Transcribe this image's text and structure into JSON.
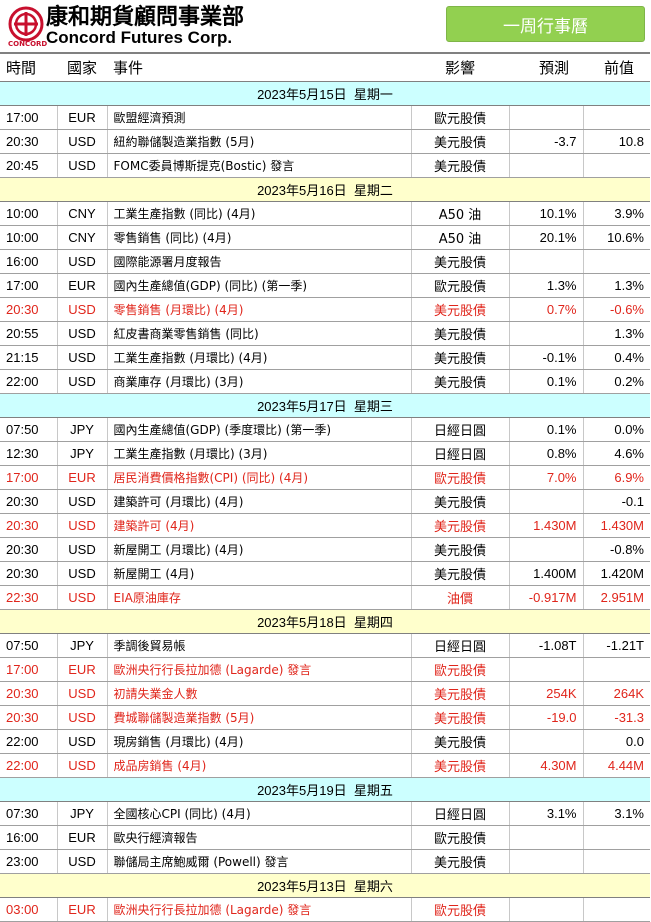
{
  "brand": {
    "chinese_name": "康和期貨顧問事業部",
    "english_name": "Concord Futures Corp.",
    "logo_small": "CONCORD"
  },
  "title": "一周行事曆",
  "colors": {
    "red": "#e0251b",
    "date_row_a": "#ccffff",
    "date_row_b": "#ffffcc",
    "badge": "#92d050"
  },
  "columns": [
    "時間",
    "國家",
    "事件",
    "影響",
    "預測",
    "前值"
  ],
  "days": [
    {
      "date": "2023年5月15日",
      "weekday": "星期一",
      "rows": [
        {
          "time": "17:00",
          "country": "EUR",
          "event": "歐盟經濟預測",
          "impact": "歐元股債",
          "forecast": "",
          "previous": "",
          "highlight": false
        },
        {
          "time": "20:30",
          "country": "USD",
          "event": "紐約聯儲製造業指數 (5月)",
          "impact": "美元股債",
          "forecast": "-3.7",
          "previous": "10.8",
          "highlight": false
        },
        {
          "time": "20:45",
          "country": "USD",
          "event": "FOMC委員博斯提克(Bostic) 發言",
          "impact": "美元股債",
          "forecast": "",
          "previous": "",
          "highlight": false
        }
      ]
    },
    {
      "date": "2023年5月16日",
      "weekday": "星期二",
      "rows": [
        {
          "time": "10:00",
          "country": "CNY",
          "event": "工業生產指數 (同比) (4月)",
          "impact": "A50 油",
          "forecast": "10.1%",
          "previous": "3.9%",
          "highlight": false
        },
        {
          "time": "10:00",
          "country": "CNY",
          "event": "零售銷售 (同比) (4月)",
          "impact": "A50 油",
          "forecast": "20.1%",
          "previous": "10.6%",
          "highlight": false
        },
        {
          "time": "16:00",
          "country": "USD",
          "event": "國際能源署月度報告",
          "impact": "美元股債",
          "forecast": "",
          "previous": "",
          "highlight": false
        },
        {
          "time": "17:00",
          "country": "EUR",
          "event": "國內生產總值(GDP) (同比) (第一季)",
          "impact": "歐元股債",
          "forecast": "1.3%",
          "previous": "1.3%",
          "highlight": false
        },
        {
          "time": "20:30",
          "country": "USD",
          "event": "零售銷售 (月環比) (4月)",
          "impact": "美元股債",
          "forecast": "0.7%",
          "previous": "-0.6%",
          "highlight": true
        },
        {
          "time": "20:55",
          "country": "USD",
          "event": "紅皮書商業零售銷售 (同比)",
          "impact": "美元股債",
          "forecast": "",
          "previous": "1.3%",
          "highlight": false
        },
        {
          "time": "21:15",
          "country": "USD",
          "event": "工業生產指數 (月環比) (4月)",
          "impact": "美元股債",
          "forecast": "-0.1%",
          "previous": "0.4%",
          "highlight": false
        },
        {
          "time": "22:00",
          "country": "USD",
          "event": "商業庫存 (月環比) (3月)",
          "impact": "美元股債",
          "forecast": "0.1%",
          "previous": "0.2%",
          "highlight": false
        }
      ]
    },
    {
      "date": "2023年5月17日",
      "weekday": "星期三",
      "rows": [
        {
          "time": "07:50",
          "country": "JPY",
          "event": "國內生產總值(GDP) (季度環比) (第一季)",
          "impact": "日經日圓",
          "forecast": "0.1%",
          "previous": "0.0%",
          "highlight": false
        },
        {
          "time": "12:30",
          "country": "JPY",
          "event": "工業生產指數 (月環比) (3月)",
          "impact": "日經日圓",
          "forecast": "0.8%",
          "previous": "4.6%",
          "highlight": false
        },
        {
          "time": "17:00",
          "country": "EUR",
          "event": "居民消費價格指數(CPI) (同比) (4月)",
          "impact": "歐元股債",
          "forecast": "7.0%",
          "previous": "6.9%",
          "highlight": true
        },
        {
          "time": "20:30",
          "country": "USD",
          "event": "建築許可 (月環比) (4月)",
          "impact": "美元股債",
          "forecast": "",
          "previous": "-0.1",
          "highlight": false
        },
        {
          "time": "20:30",
          "country": "USD",
          "event": "建築許可 (4月)",
          "impact": "美元股債",
          "forecast": "1.430M",
          "previous": "1.430M",
          "highlight": true
        },
        {
          "time": "20:30",
          "country": "USD",
          "event": "新屋開工 (月環比) (4月)",
          "impact": "美元股債",
          "forecast": "",
          "previous": "-0.8%",
          "highlight": false
        },
        {
          "time": "20:30",
          "country": "USD",
          "event": "新屋開工 (4月)",
          "impact": "美元股債",
          "forecast": "1.400M",
          "previous": "1.420M",
          "highlight": false
        },
        {
          "time": "22:30",
          "country": "USD",
          "event": "EIA原油庫存",
          "impact": "油價",
          "forecast": "-0.917M",
          "previous": "2.951M",
          "highlight": true
        }
      ]
    },
    {
      "date": "2023年5月18日",
      "weekday": "星期四",
      "rows": [
        {
          "time": "07:50",
          "country": "JPY",
          "event": "季調後貿易帳",
          "impact": "日經日圓",
          "forecast": "-1.08T",
          "previous": "-1.21T",
          "highlight": false
        },
        {
          "time": "17:00",
          "country": "EUR",
          "event": "歐洲央行行長拉加德 (Lagarde) 發言",
          "impact": "歐元股債",
          "forecast": "",
          "previous": "",
          "highlight": true
        },
        {
          "time": "20:30",
          "country": "USD",
          "event": "初請失業金人數",
          "impact": "美元股債",
          "forecast": "254K",
          "previous": "264K",
          "highlight": true
        },
        {
          "time": "20:30",
          "country": "USD",
          "event": "費城聯儲製造業指數 (5月)",
          "impact": "美元股債",
          "forecast": "-19.0",
          "previous": "-31.3",
          "highlight": true
        },
        {
          "time": "22:00",
          "country": "USD",
          "event": "現房銷售 (月環比) (4月)",
          "impact": "美元股債",
          "forecast": "",
          "previous": "0.0",
          "highlight": false
        },
        {
          "time": "22:00",
          "country": "USD",
          "event": "成品房銷售 (4月)",
          "impact": "美元股債",
          "forecast": "4.30M",
          "previous": "4.44M",
          "highlight": true
        }
      ]
    },
    {
      "date": "2023年5月19日",
      "weekday": "星期五",
      "rows": [
        {
          "time": "07:30",
          "country": "JPY",
          "event": "全國核心CPI (同比) (4月)",
          "impact": "日經日圓",
          "forecast": "3.1%",
          "previous": "3.1%",
          "highlight": false
        },
        {
          "time": "16:00",
          "country": "EUR",
          "event": "歐央行經濟報告",
          "impact": "歐元股債",
          "forecast": "",
          "previous": "",
          "highlight": false
        },
        {
          "time": "23:00",
          "country": "USD",
          "event": "聯儲局主席鮑威爾 (Powell) 發言",
          "impact": "美元股債",
          "forecast": "",
          "previous": "",
          "highlight": false
        }
      ]
    },
    {
      "date": "2023年5月13日",
      "weekday": "星期六",
      "rows": [
        {
          "time": "03:00",
          "country": "EUR",
          "event": "歐洲央行行長拉加德 (Lagarde) 發言",
          "impact": "歐元股債",
          "forecast": "",
          "previous": "",
          "highlight": true
        }
      ]
    }
  ]
}
